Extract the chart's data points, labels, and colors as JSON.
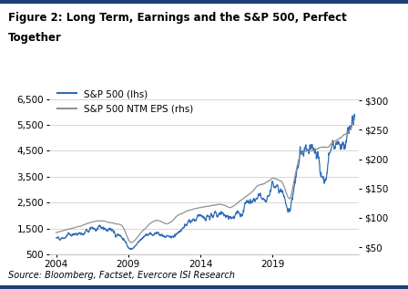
{
  "title_line1": "Figure 2: Long Term, Earnings and the S&P 500, Perfect",
  "title_line2": "Together",
  "source": "Source: Bloomberg, Factset, Evercore ISI Research",
  "line1_label": "S&P 500 (lhs)",
  "line2_label": "S&P 500 NTM EPS (rhs)",
  "line1_color": "#2f6db5",
  "line2_color": "#929292",
  "background_color": "#ffffff",
  "border_color": "#1f3f7a",
  "left_ylim": [
    500,
    7200
  ],
  "right_ylim": [
    38,
    333
  ],
  "left_yticks": [
    500,
    1500,
    2500,
    3500,
    4500,
    5500,
    6500
  ],
  "right_yticks": [
    50,
    100,
    150,
    200,
    250,
    300
  ],
  "right_yticklabels": [
    "$50",
    "$100",
    "$150",
    "$200",
    "$250",
    "$300"
  ],
  "xticks": [
    2004,
    2009,
    2014,
    2019
  ],
  "grid_color": "#c8c8c8",
  "title_fontsize": 8.5,
  "axis_fontsize": 7.5,
  "source_fontsize": 7.0,
  "legend_fontsize": 7.5
}
